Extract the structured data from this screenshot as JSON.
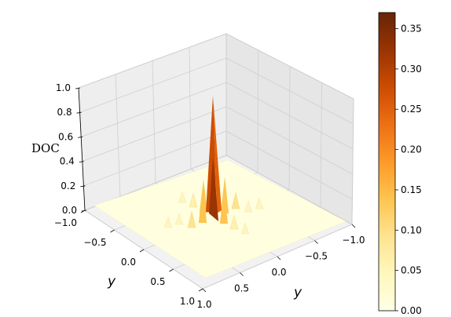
{
  "chart_data": {
    "type": "surface3d",
    "x_axis": {
      "label": "y",
      "ticks": [
        "−1.0",
        "−0.5",
        "0.0",
        "0.5",
        "1.0"
      ],
      "range": [
        -1.0,
        1.0
      ]
    },
    "y_axis": {
      "label": "y",
      "ticks": [
        "−1.0",
        "−0.5",
        "0.0",
        "0.5",
        "1.0"
      ],
      "range": [
        -1.0,
        1.0
      ]
    },
    "z_axis": {
      "label": "DOC",
      "ticks": [
        "0.0",
        "0.2",
        "0.4",
        "0.6",
        "0.8",
        "1.0"
      ],
      "range": [
        0.0,
        1.0
      ]
    },
    "colorbar": {
      "colormap": "YlOrBr",
      "range": [
        0.0,
        0.37
      ],
      "ticks": [
        "0.00",
        "0.05",
        "0.10",
        "0.15",
        "0.20",
        "0.25",
        "0.30",
        "0.35"
      ],
      "tick_values": [
        0.0,
        0.05,
        0.1,
        0.15,
        0.2,
        0.25,
        0.3,
        0.35
      ]
    },
    "surface": {
      "description_values": {
        "peak": {
          "x": 0.0,
          "y": 0.0,
          "z": 0.93
        },
        "secondary_peaks": [
          {
            "x": 0.1,
            "y": 0.0,
            "z": 0.28
          },
          {
            "x": -0.1,
            "y": 0.0,
            "z": 0.28
          },
          {
            "x": 0.0,
            "y": 0.1,
            "z": 0.25
          },
          {
            "x": 0.0,
            "y": -0.1,
            "z": 0.25
          },
          {
            "x": 0.2,
            "y": 0.0,
            "z": 0.12
          },
          {
            "x": -0.2,
            "y": 0.0,
            "z": 0.12
          },
          {
            "x": 0.0,
            "y": 0.2,
            "z": 0.1
          },
          {
            "x": 0.0,
            "y": -0.2,
            "z": 0.1
          }
        ],
        "base_level": 0.0
      }
    },
    "grid": true
  }
}
